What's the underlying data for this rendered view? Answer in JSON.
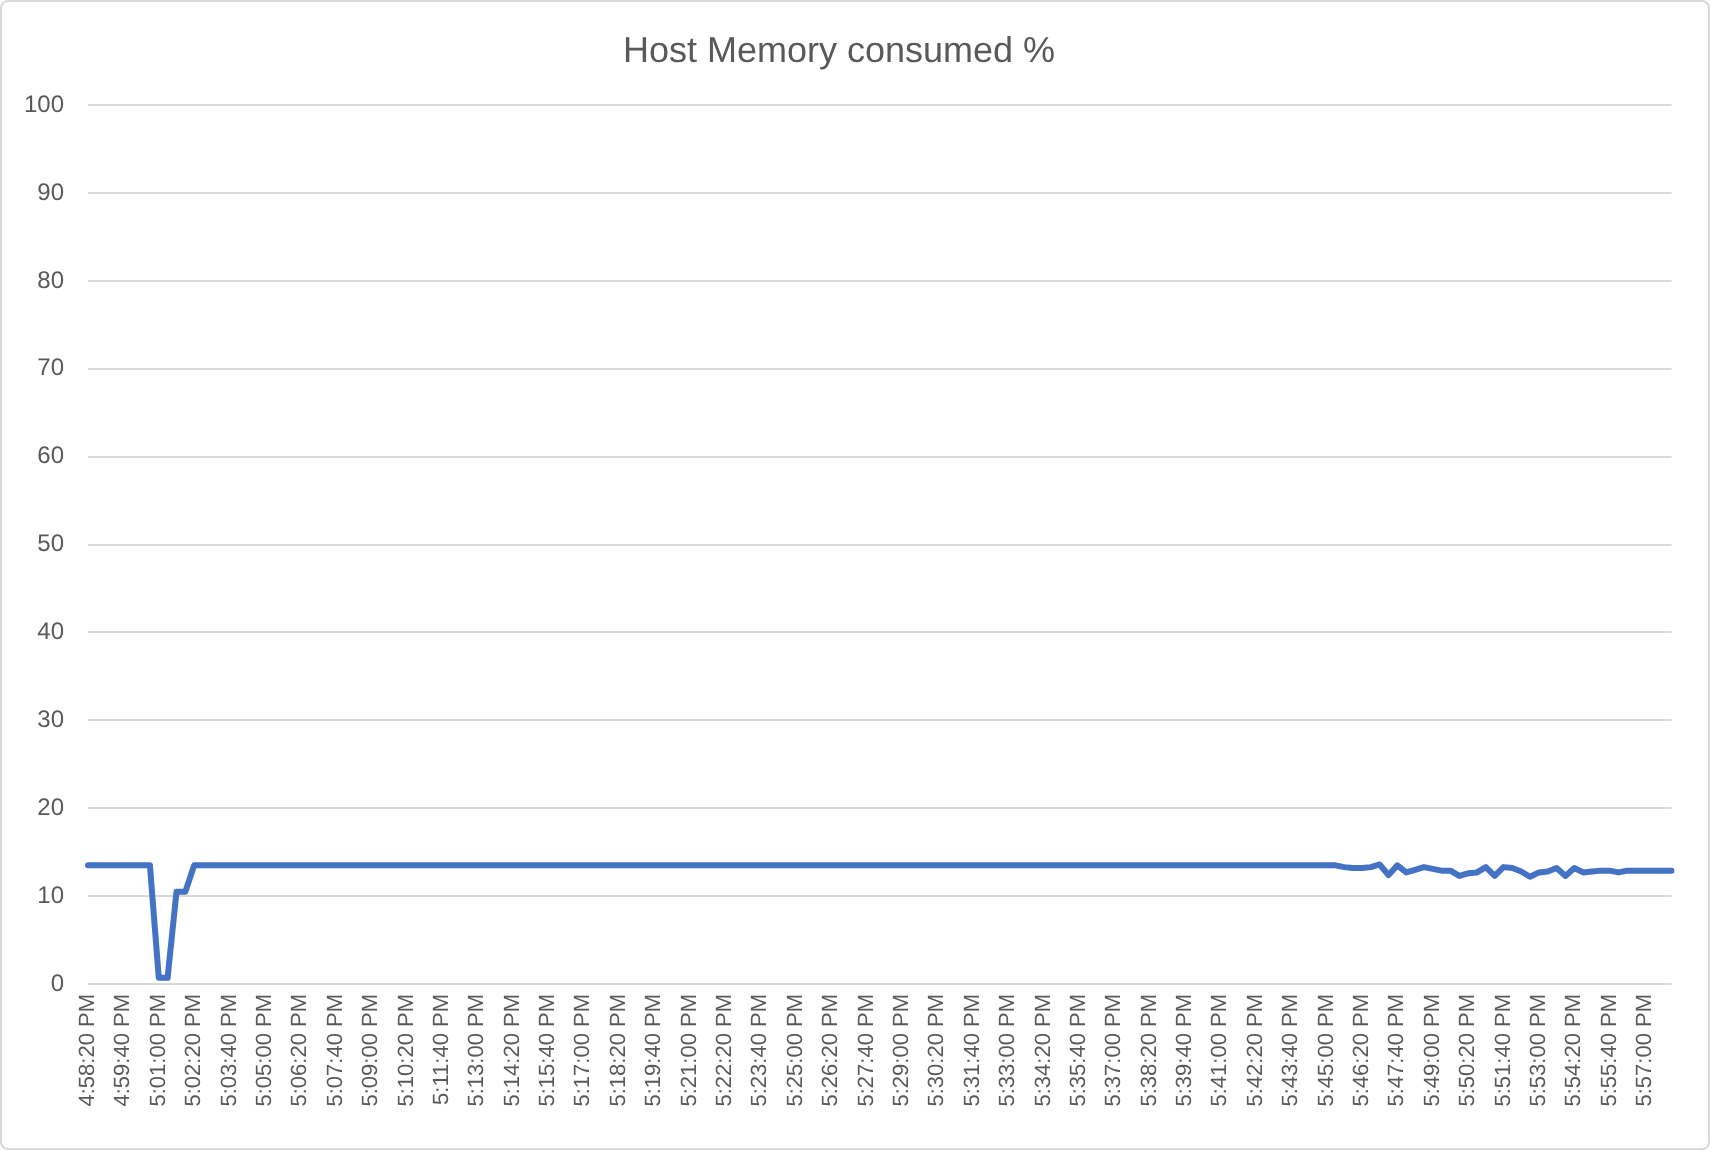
{
  "chart_data": {
    "type": "line",
    "title": "Host Memory consumed %",
    "categories": [
      "4:58:20 PM",
      null,
      null,
      null,
      "4:59:40 PM",
      null,
      null,
      null,
      "5:01:00 PM",
      null,
      null,
      null,
      "5:02:20 PM",
      null,
      null,
      null,
      "5:03:40 PM",
      null,
      null,
      null,
      "5:05:00 PM",
      null,
      null,
      null,
      "5:06:20 PM",
      null,
      null,
      null,
      "5:07:40 PM",
      null,
      null,
      null,
      "5:09:00 PM",
      null,
      null,
      null,
      "5:10:20 PM",
      null,
      null,
      null,
      "5:11:40 PM",
      null,
      null,
      null,
      "5:13:00 PM",
      null,
      null,
      null,
      "5:14:20 PM",
      null,
      null,
      null,
      "5:15:40 PM",
      null,
      null,
      null,
      "5:17:00 PM",
      null,
      null,
      null,
      "5:18:20 PM",
      null,
      null,
      null,
      "5:19:40 PM",
      null,
      null,
      null,
      "5:21:00 PM",
      null,
      null,
      null,
      "5:22:20 PM",
      null,
      null,
      null,
      "5:23:40 PM",
      null,
      null,
      null,
      "5:25:00 PM",
      null,
      null,
      null,
      "5:26:20 PM",
      null,
      null,
      null,
      "5:27:40 PM",
      null,
      null,
      null,
      "5:29:00 PM",
      null,
      null,
      null,
      "5:30:20 PM",
      null,
      null,
      null,
      "5:31:40 PM",
      null,
      null,
      null,
      "5:33:00 PM",
      null,
      null,
      null,
      "5:34:20 PM",
      null,
      null,
      null,
      "5:35:40 PM",
      null,
      null,
      null,
      "5:37:00 PM",
      null,
      null,
      null,
      "5:38:20 PM",
      null,
      null,
      null,
      "5:39:40 PM",
      null,
      null,
      null,
      "5:41:00 PM",
      null,
      null,
      null,
      "5:42:20 PM",
      null,
      null,
      null,
      "5:43:40 PM",
      null,
      null,
      null,
      "5:45:00 PM",
      null,
      null,
      null,
      "5:46:20 PM",
      null,
      null,
      null,
      "5:47:40 PM",
      null,
      null,
      null,
      "5:49:00 PM",
      null,
      null,
      null,
      "5:50:20 PM",
      null,
      null,
      null,
      "5:51:40 PM",
      null,
      null,
      null,
      "5:53:00 PM",
      null,
      null,
      null,
      "5:54:20 PM",
      null,
      null,
      null,
      "5:55:40 PM",
      null,
      null,
      null,
      "5:57:00 PM",
      null,
      null,
      null
    ],
    "series": [
      {
        "color": "#4472c4",
        "values": [
          13.5,
          13.5,
          13.5,
          13.5,
          13.5,
          13.5,
          13.5,
          13.5,
          0.7,
          0.7,
          10.5,
          10.5,
          13.5,
          13.5,
          13.5,
          13.5,
          13.5,
          13.5,
          13.5,
          13.5,
          13.5,
          13.5,
          13.5,
          13.5,
          13.5,
          13.5,
          13.5,
          13.5,
          13.5,
          13.5,
          13.5,
          13.5,
          13.5,
          13.5,
          13.5,
          13.5,
          13.5,
          13.5,
          13.5,
          13.5,
          13.5,
          13.5,
          13.5,
          13.5,
          13.5,
          13.5,
          13.5,
          13.5,
          13.5,
          13.5,
          13.5,
          13.5,
          13.5,
          13.5,
          13.5,
          13.5,
          13.5,
          13.5,
          13.5,
          13.5,
          13.5,
          13.5,
          13.5,
          13.5,
          13.5,
          13.5,
          13.5,
          13.5,
          13.5,
          13.5,
          13.5,
          13.5,
          13.5,
          13.5,
          13.5,
          13.5,
          13.5,
          13.5,
          13.5,
          13.5,
          13.5,
          13.5,
          13.5,
          13.5,
          13.5,
          13.5,
          13.5,
          13.5,
          13.5,
          13.5,
          13.5,
          13.5,
          13.5,
          13.5,
          13.5,
          13.5,
          13.5,
          13.5,
          13.5,
          13.5,
          13.5,
          13.5,
          13.5,
          13.5,
          13.5,
          13.5,
          13.5,
          13.5,
          13.5,
          13.5,
          13.5,
          13.5,
          13.5,
          13.5,
          13.5,
          13.5,
          13.5,
          13.5,
          13.5,
          13.5,
          13.5,
          13.5,
          13.5,
          13.5,
          13.5,
          13.5,
          13.5,
          13.5,
          13.5,
          13.5,
          13.5,
          13.5,
          13.5,
          13.5,
          13.5,
          13.5,
          13.5,
          13.5,
          13.5,
          13.5,
          13.5,
          13.5,
          13.3,
          13.2,
          13.2,
          13.3,
          13.6,
          12.4,
          13.5,
          12.7,
          13,
          13.3,
          13.1,
          12.9,
          12.9,
          12.3,
          12.6,
          12.7,
          13.3,
          12.3,
          13.3,
          13.2,
          12.8,
          12.2,
          12.7,
          12.8,
          13.2,
          12.3,
          13.2,
          12.7,
          12.8,
          12.9,
          12.9,
          12.7,
          12.9,
          12.9,
          12.9,
          12.9,
          12.9,
          12.9
        ]
      }
    ],
    "ylim": [
      0,
      100
    ],
    "yticks": [
      0,
      10,
      20,
      30,
      40,
      50,
      60,
      70,
      80,
      90,
      100
    ],
    "grid": "y",
    "legend": false,
    "marker": "none"
  }
}
